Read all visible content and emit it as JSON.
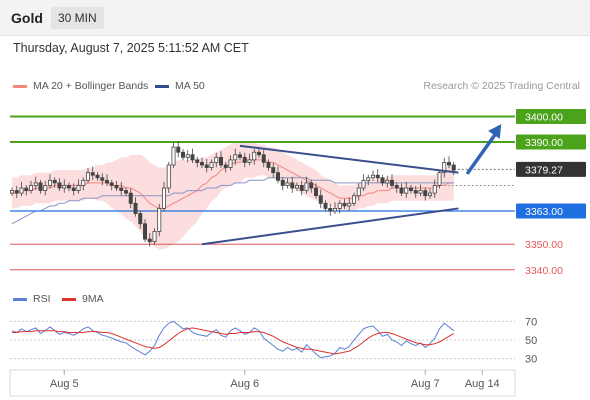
{
  "header": {
    "symbol": "Gold",
    "period": "30 MIN",
    "datetime": "Thursday, August 7, 2025 5:11:52 AM CET"
  },
  "legend": {
    "ma20": {
      "label": "MA 20 + Bollinger Bands",
      "color": "#f4857f"
    },
    "ma50": {
      "label": "MA 50",
      "color": "#2f4f8f"
    },
    "credit": "Research © 2025 Trading Central"
  },
  "rsi_legend": {
    "rsi": {
      "label": "RSI",
      "color": "#5b7fd6"
    },
    "ma9": {
      "label": "9MA",
      "color": "#e03030"
    }
  },
  "chart_data": {
    "type": "candlestick",
    "price_range": [
      3336,
      3408
    ],
    "current_price": 3379.27,
    "x_labels": [
      {
        "label": "Aug 5",
        "index": 11
      },
      {
        "label": "Aug 6",
        "index": 49
      },
      {
        "label": "Aug 7",
        "index": 87
      },
      {
        "label": "Aug 14",
        "index": 99
      }
    ],
    "levels": [
      {
        "value": 3400.0,
        "label": "3400.00",
        "kind": "resistance",
        "color": "#4aa31a"
      },
      {
        "value": 3390.0,
        "label": "3390.00",
        "kind": "resistance",
        "color": "#4aa31a"
      },
      {
        "value": 3379.27,
        "label": "3379.27",
        "kind": "current",
        "color": "#333333"
      },
      {
        "value": 3363.0,
        "label": "3363.00",
        "kind": "pivot",
        "color": "#1f6fe0"
      },
      {
        "value": 3350.0,
        "label": "3350.00",
        "kind": "support",
        "color": "#e35a5a"
      },
      {
        "value": 3340.0,
        "label": "3340.00",
        "kind": "support",
        "color": "#e35a5a"
      }
    ],
    "closes": [
      3371,
      3370,
      3372,
      3371,
      3373,
      3374,
      3371,
      3373,
      3375,
      3374,
      3372,
      3373,
      3372,
      3371,
      3373,
      3375,
      3378,
      3377,
      3376,
      3375,
      3374,
      3373,
      3372,
      3371,
      3370,
      3366,
      3362,
      3358,
      3352,
      3351,
      3355,
      3364,
      3372,
      3381,
      3388,
      3386,
      3384,
      3385,
      3383,
      3382,
      3381,
      3380,
      3382,
      3384,
      3381,
      3380,
      3383,
      3385,
      3384,
      3382,
      3383,
      3386,
      3385,
      3382,
      3380,
      3378,
      3375,
      3373,
      3374,
      3372,
      3373,
      3371,
      3374,
      3372,
      3369,
      3366,
      3364,
      3363,
      3364,
      3366,
      3365,
      3366,
      3369,
      3372,
      3375,
      3376,
      3377,
      3376,
      3374,
      3375,
      3373,
      3372,
      3370,
      3372,
      3371,
      3370,
      3371,
      3369,
      3370,
      3373,
      3378,
      3382,
      3381,
      3379
    ],
    "ma20": [
      3370,
      3370,
      3371,
      3371,
      3371,
      3372,
      3372,
      3372,
      3372,
      3373,
      3373,
      3373,
      3373,
      3373,
      3373,
      3373,
      3374,
      3374,
      3374,
      3374,
      3374,
      3373,
      3373,
      3373,
      3372,
      3372,
      3371,
      3370,
      3368,
      3366,
      3365,
      3364,
      3364,
      3365,
      3366,
      3367,
      3368,
      3369,
      3370,
      3371,
      3373,
      3374,
      3376,
      3377,
      3379,
      3380,
      3381,
      3382,
      3382,
      3383,
      3383,
      3383,
      3383,
      3383,
      3382,
      3382,
      3381,
      3380,
      3379,
      3378,
      3377,
      3376,
      3375,
      3374,
      3373,
      3372,
      3371,
      3370,
      3369,
      3368,
      3368,
      3368,
      3368,
      3369,
      3369,
      3370,
      3370,
      3371,
      3371,
      3371,
      3372,
      3372,
      3372,
      3372,
      3372,
      3372,
      3372,
      3372,
      3372,
      3372,
      3373,
      3373,
      3374,
      3374
    ],
    "ma50": [
      3358,
      3359,
      3360,
      3361,
      3362,
      3363,
      3363,
      3364,
      3365,
      3365,
      3366,
      3366,
      3367,
      3367,
      3367,
      3368,
      3368,
      3368,
      3368,
      3369,
      3369,
      3369,
      3369,
      3369,
      3369,
      3369,
      3369,
      3369,
      3369,
      3369,
      3369,
      3369,
      3369,
      3369,
      3370,
      3370,
      3370,
      3371,
      3371,
      3371,
      3371,
      3372,
      3372,
      3372,
      3373,
      3373,
      3373,
      3374,
      3374,
      3374,
      3375,
      3375,
      3375,
      3375,
      3376,
      3376,
      3376,
      3376,
      3376,
      3376,
      3376,
      3376,
      3376,
      3375,
      3375,
      3375,
      3375,
      3375,
      3374,
      3374,
      3374,
      3374,
      3374,
      3374,
      3374,
      3374,
      3374,
      3374,
      3374,
      3374,
      3374,
      3374,
      3374,
      3374,
      3374,
      3374,
      3374,
      3374,
      3374,
      3374,
      3374,
      3374,
      3374,
      3374
    ],
    "bb_width": [
      6,
      6,
      6,
      6,
      6,
      6,
      6,
      6,
      6,
      6,
      6,
      6,
      6,
      6,
      6,
      6,
      6,
      6,
      7,
      7,
      8,
      9,
      10,
      11,
      12,
      13,
      14,
      15,
      16,
      16,
      16,
      16,
      16,
      16,
      16,
      16,
      15,
      14,
      13,
      12,
      11,
      10,
      9,
      9,
      8,
      8,
      8,
      8,
      8,
      7,
      7,
      7,
      6,
      6,
      6,
      6,
      6,
      6,
      6,
      6,
      6,
      6,
      6,
      6,
      6,
      5,
      5,
      5,
      5,
      5,
      5,
      5,
      5,
      5,
      5,
      5,
      5,
      5,
      5,
      5,
      5,
      5,
      5,
      5,
      5,
      5,
      5,
      5,
      5,
      5,
      6,
      6,
      7,
      7
    ],
    "triangle": {
      "upper": {
        "from": [
          48,
          3388.5
        ],
        "to": [
          94,
          3378
        ]
      },
      "lower": {
        "from": [
          40,
          3350
        ],
        "to": [
          94,
          3364
        ]
      }
    },
    "forecast_arrow": {
      "from": [
        96,
        3378
      ],
      "to": [
        103,
        3397
      ]
    },
    "rsi": {
      "range": [
        20,
        80
      ],
      "ticks": [
        30,
        50,
        70
      ],
      "rsi_values": [
        60,
        58,
        62,
        59,
        61,
        63,
        57,
        60,
        64,
        60,
        56,
        58,
        57,
        55,
        58,
        62,
        64,
        60,
        58,
        55,
        54,
        52,
        50,
        48,
        47,
        43,
        40,
        37,
        34,
        38,
        44,
        55,
        63,
        68,
        70,
        66,
        62,
        63,
        58,
        56,
        55,
        54,
        58,
        61,
        55,
        53,
        60,
        63,
        60,
        56,
        58,
        63,
        60,
        52,
        48,
        44,
        40,
        38,
        42,
        39,
        41,
        37,
        45,
        40,
        35,
        31,
        32,
        33,
        36,
        42,
        40,
        43,
        50,
        56,
        62,
        64,
        65,
        60,
        54,
        56,
        50,
        48,
        44,
        49,
        46,
        44,
        47,
        42,
        46,
        52,
        62,
        68,
        64,
        60
      ],
      "ma9_values": [
        58,
        58,
        59,
        59,
        59,
        60,
        60,
        60,
        60,
        60,
        59,
        59,
        58,
        58,
        58,
        58,
        59,
        59,
        59,
        58,
        58,
        57,
        55,
        53,
        51,
        49,
        47,
        45,
        43,
        42,
        41,
        42,
        45,
        49,
        53,
        57,
        60,
        62,
        63,
        62,
        61,
        60,
        59,
        58,
        57,
        56,
        57,
        57,
        58,
        58,
        58,
        59,
        59,
        58,
        56,
        54,
        51,
        48,
        46,
        44,
        42,
        41,
        40,
        40,
        39,
        38,
        37,
        36,
        35,
        36,
        37,
        38,
        41,
        44,
        48,
        52,
        55,
        57,
        58,
        58,
        57,
        55,
        53,
        51,
        49,
        47,
        46,
        45,
        45,
        46,
        48,
        51,
        54,
        57
      ]
    }
  }
}
